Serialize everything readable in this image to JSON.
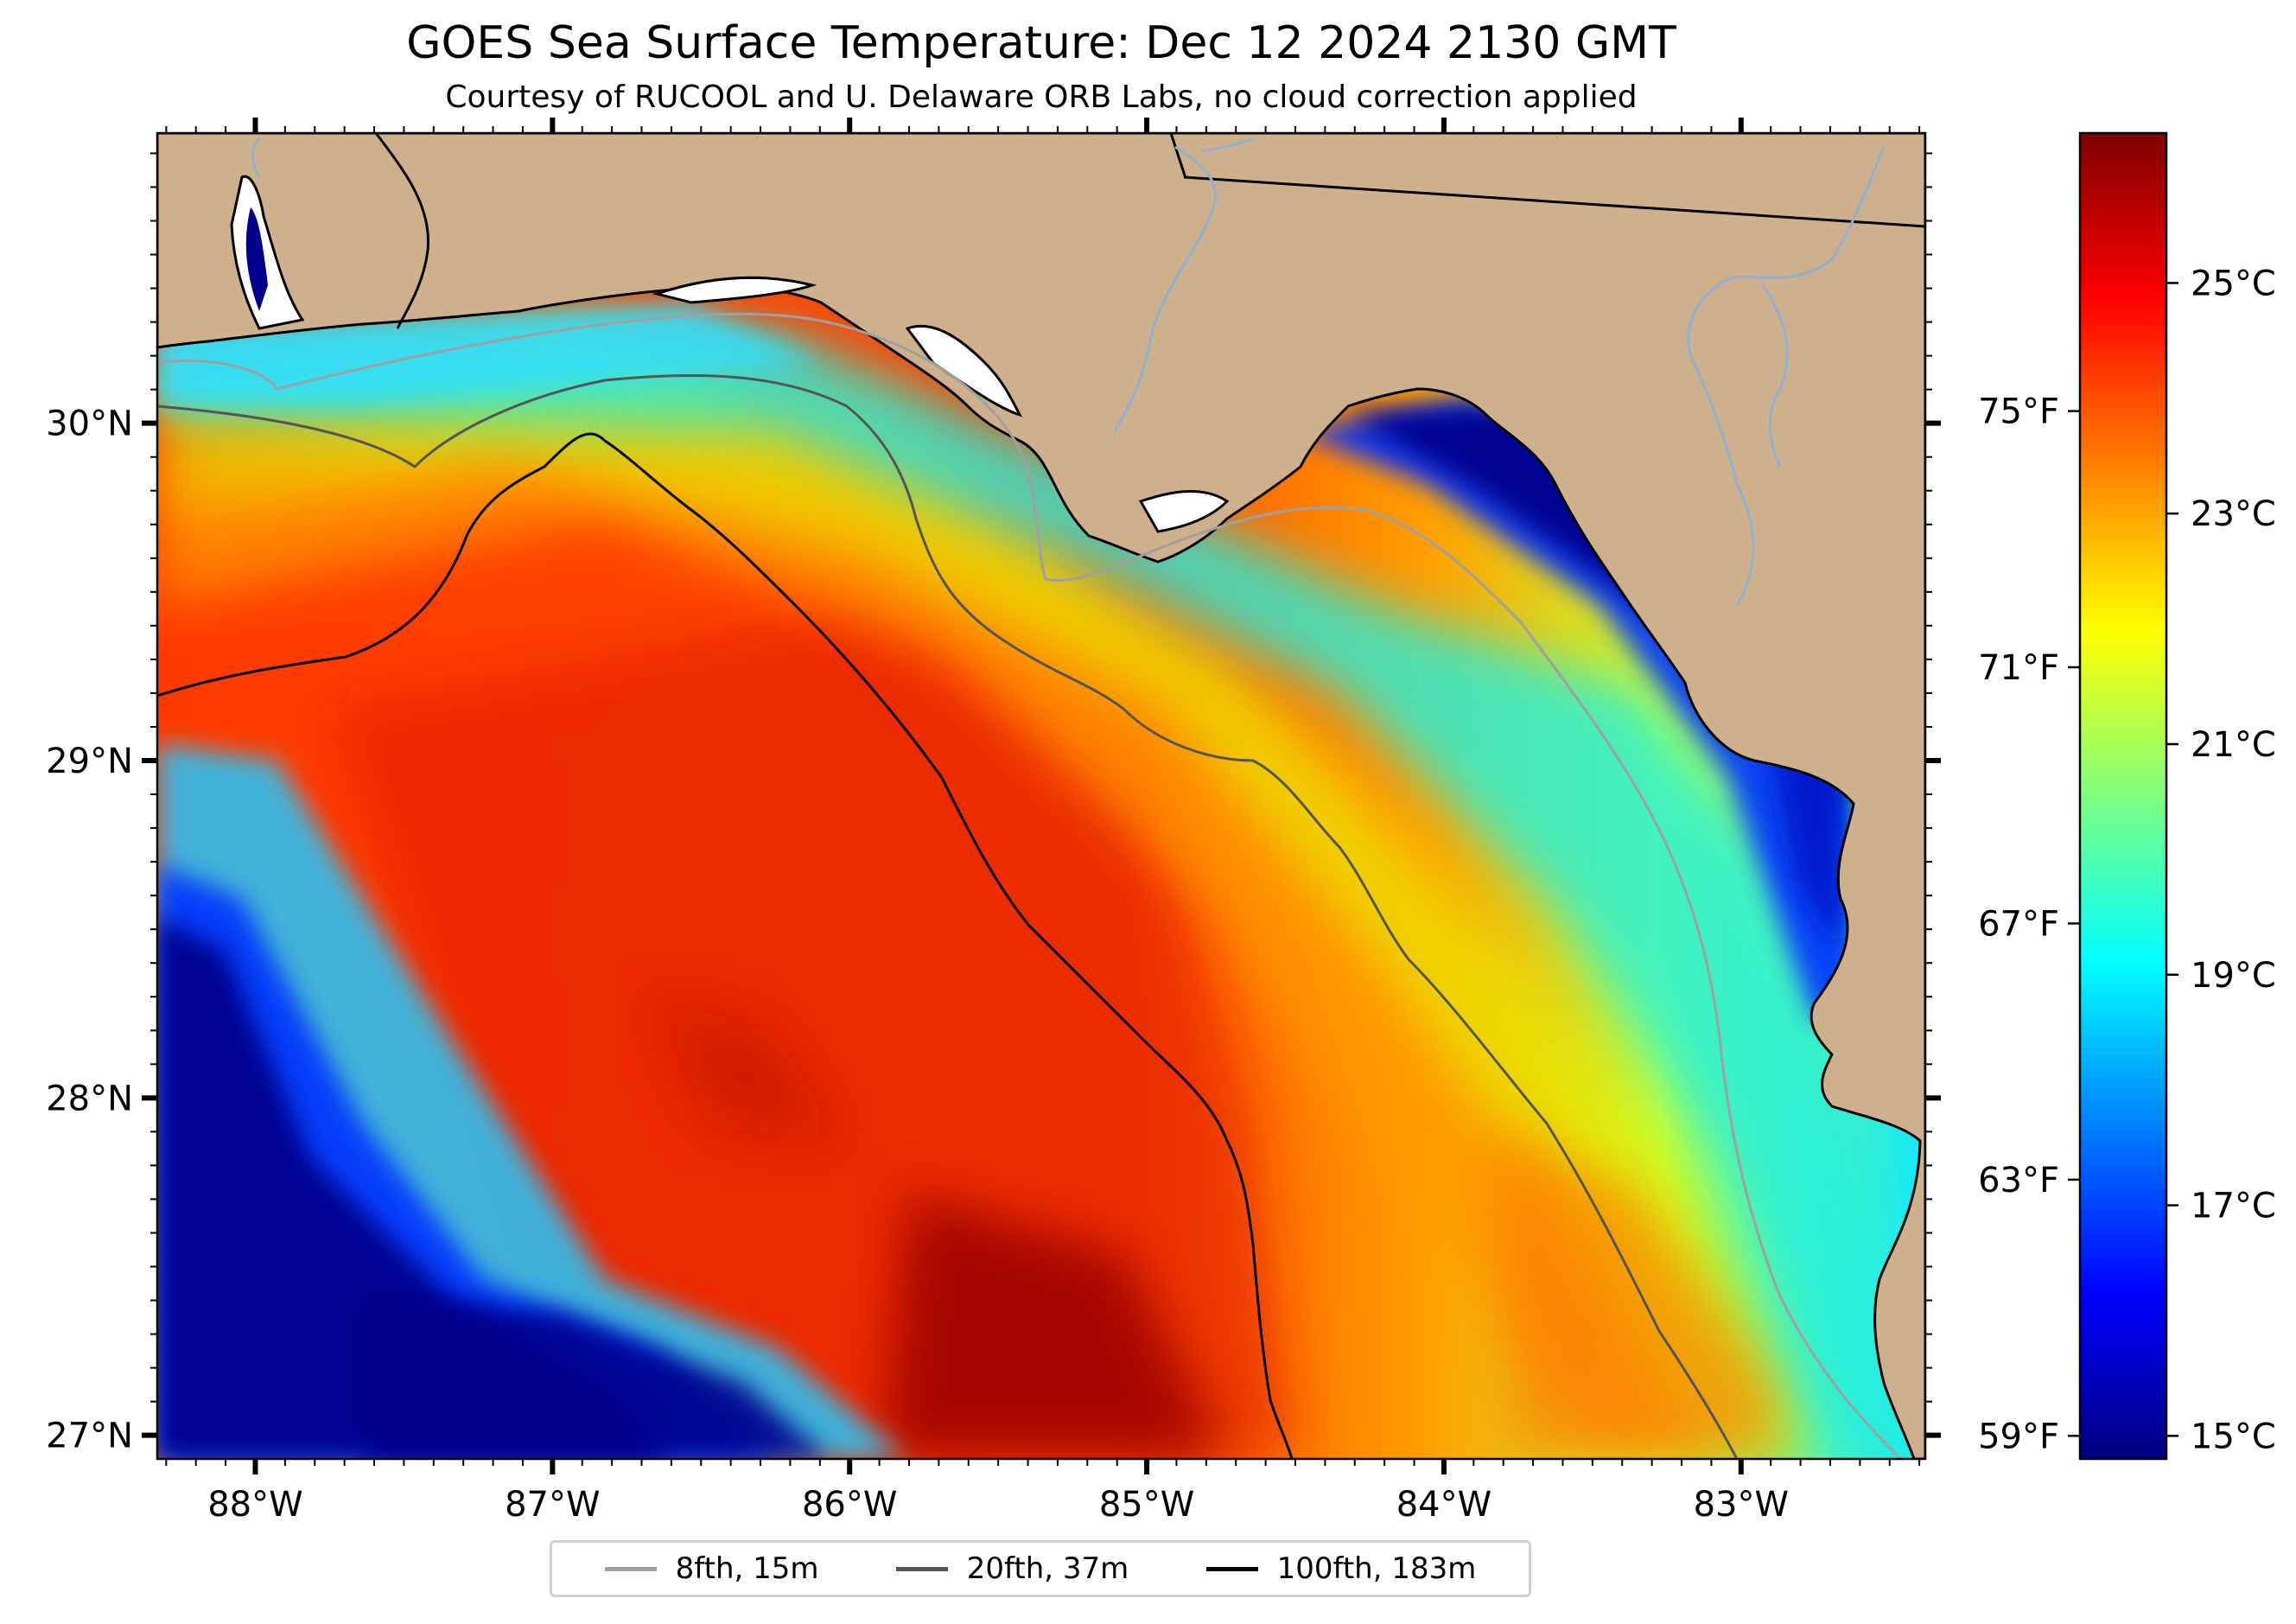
{
  "title": "GOES Sea Surface Temperature: Dec 12 2024 2130 GMT",
  "subtitle": "Courtesy of RUCOOL and U. Delaware ORB Labs, no cloud correction applied",
  "colors": {
    "land": "#cfb08c",
    "cold": "#00008c",
    "warm": "#8b0000",
    "colormap": [
      "#00007f",
      "#0000ff",
      "#007fff",
      "#00ffff",
      "#7fff7f",
      "#ffff00",
      "#ff7f00",
      "#ff0000",
      "#7f0000"
    ]
  },
  "map": {
    "lon_range": [
      -88.33,
      -82.38
    ],
    "lat_range": [
      26.93,
      30.86
    ],
    "lat_ticks": [
      {
        "value": 30,
        "label": "30°N"
      },
      {
        "value": 29,
        "label": "29°N"
      },
      {
        "value": 28,
        "label": "28°N"
      },
      {
        "value": 27,
        "label": "27°N"
      }
    ],
    "lon_ticks": [
      {
        "value": -88,
        "label": "88°W"
      },
      {
        "value": -87,
        "label": "87°W"
      },
      {
        "value": -86,
        "label": "86°W"
      },
      {
        "value": -85,
        "label": "85°W"
      },
      {
        "value": -84,
        "label": "84°W"
      },
      {
        "value": -83,
        "label": "83°W"
      }
    ]
  },
  "colorbar": {
    "celsius_range": [
      14.8,
      26.3
    ],
    "celsius_ticks": [
      {
        "value": 25,
        "label": "25°C"
      },
      {
        "value": 23,
        "label": "23°C"
      },
      {
        "value": 21,
        "label": "21°C"
      },
      {
        "value": 19,
        "label": "19°C"
      },
      {
        "value": 17,
        "label": "17°C"
      },
      {
        "value": 15,
        "label": "15°C"
      }
    ],
    "fahrenheit_ticks": [
      {
        "value": 75,
        "label": "75°F"
      },
      {
        "value": 71,
        "label": "71°F"
      },
      {
        "value": 67,
        "label": "67°F"
      },
      {
        "value": 63,
        "label": "63°F"
      },
      {
        "value": 59,
        "label": "59°F"
      }
    ]
  },
  "legend": {
    "items": [
      {
        "label": "8fth, 15m",
        "color": "#a0a0a0"
      },
      {
        "label": "20fth, 37m",
        "color": "#555555"
      },
      {
        "label": "100fth, 183m",
        "color": "#000000"
      }
    ]
  }
}
